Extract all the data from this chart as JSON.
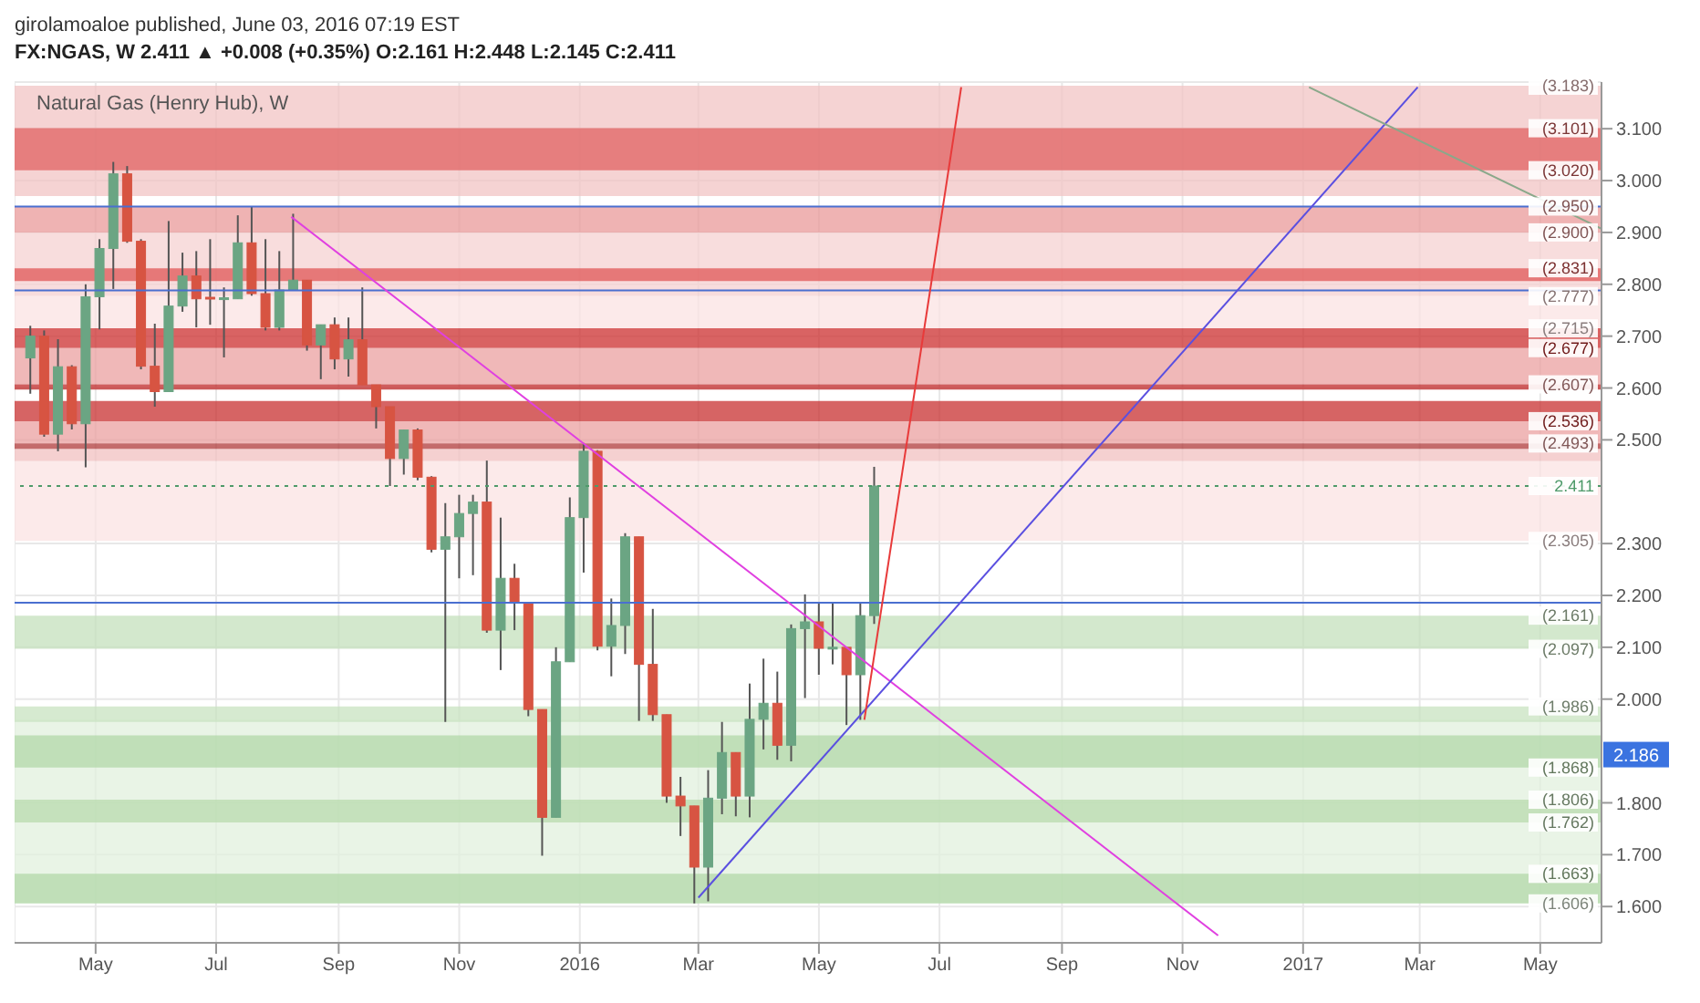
{
  "chart_data": {
    "type": "candlestick",
    "title": "girolamoaloe published, June 03, 2016 07:19 EST",
    "subtitle": "FX:NGAS, W 2.411 ▲ +0.008 (+0.35%) O:2.161 H:2.448 L:2.145 C:2.411",
    "annotations": [
      "Natural Gas (Henry Hub), W",
      {
        "text": "2.186",
        "y": 1.893
      },
      {
        "text": "(3.183)",
        "x": "2017-06-01",
        "y": 3.183
      },
      {
        "text": "(3.101)",
        "x": "2017-06-01",
        "y": 3.101
      },
      {
        "text": "(3.020)",
        "x": "2017-06-01",
        "y": 3.02
      },
      {
        "text": "(2.950)",
        "x": "2017-06-01",
        "y": 2.95
      },
      {
        "text": "(2.900)",
        "x": "2017-06-01",
        "y": 2.9
      },
      {
        "text": "(2.831)",
        "x": "2017-06-01",
        "y": 2.831
      },
      {
        "text": "(2.777)",
        "x": "2017-06-01",
        "y": 2.777
      },
      {
        "text": "(2.715)",
        "x": "2017-06-01",
        "y": 2.715
      },
      {
        "text": "(2.677)",
        "x": "2017-06-01",
        "y": 2.677
      },
      {
        "text": "(2.607)",
        "x": "2017-06-01",
        "y": 2.607
      },
      {
        "text": "(2.536)",
        "x": "2017-06-01",
        "y": 2.536
      },
      {
        "text": "(2.493)",
        "x": "2017-06-01",
        "y": 2.493
      },
      {
        "text": "(2.305)",
        "x": "2017-06-01",
        "y": 2.305
      },
      {
        "text": "(2.161)",
        "x": "2017-06-01",
        "y": 2.161
      },
      {
        "text": "(2.097)",
        "x": "2017-06-01",
        "y": 2.097
      },
      {
        "text": "(1.986)",
        "x": "2017-06-01",
        "y": 1.986
      },
      {
        "text": "(1.868)",
        "x": "2017-06-01",
        "y": 1.868
      },
      {
        "text": "(1.806)",
        "x": "2017-06-01",
        "y": 1.806
      },
      {
        "text": "(1.762)",
        "x": "2017-06-01",
        "y": 1.762
      },
      {
        "text": "(1.663)",
        "x": "2017-06-01",
        "y": 1.663
      },
      {
        "text": "(1.606)",
        "x": "2017-06-01",
        "y": 1.606
      }
    ],
    "x": [
      "2015-03-29",
      "2015-04-05",
      "2015-04-12",
      "2015-04-19",
      "2015-04-26",
      "2015-05-03",
      "2015-05-10",
      "2015-05-17",
      "2015-05-24",
      "2015-05-31",
      "2015-06-07",
      "2015-06-14",
      "2015-06-21",
      "2015-06-28",
      "2015-07-05",
      "2015-07-12",
      "2015-07-19",
      "2015-07-26",
      "2015-08-02",
      "2015-08-09",
      "2015-08-16",
      "2015-08-23",
      "2015-08-30",
      "2015-09-06",
      "2015-09-13",
      "2015-09-20",
      "2015-09-27",
      "2015-10-04",
      "2015-10-11",
      "2015-10-18",
      "2015-10-25",
      "2015-11-01",
      "2015-11-08",
      "2015-11-15",
      "2015-11-22",
      "2015-11-29",
      "2015-12-06",
      "2015-12-13",
      "2015-12-20",
      "2015-12-27",
      "2016-01-03",
      "2016-01-10",
      "2016-01-17",
      "2016-01-24",
      "2016-01-31",
      "2016-02-07",
      "2016-02-14",
      "2016-02-21",
      "2016-02-28",
      "2016-03-06",
      "2016-03-13",
      "2016-03-20",
      "2016-03-27",
      "2016-04-03",
      "2016-04-10",
      "2016-04-17",
      "2016-04-24",
      "2016-05-01",
      "2016-05-08",
      "2016-05-15",
      "2016-05-22",
      "2016-05-29"
    ],
    "ohlc": [
      [
        2.658,
        2.72,
        2.589,
        2.7
      ],
      [
        2.7,
        2.711,
        2.506,
        2.511
      ],
      [
        2.511,
        2.694,
        2.478,
        2.641
      ],
      [
        2.641,
        2.644,
        2.52,
        2.531
      ],
      [
        2.531,
        2.8,
        2.447,
        2.776
      ],
      [
        2.776,
        2.887,
        2.713,
        2.869
      ],
      [
        2.869,
        3.036,
        2.791,
        3.013
      ],
      [
        3.013,
        3.028,
        2.88,
        2.883
      ],
      [
        2.883,
        2.887,
        2.636,
        2.642
      ],
      [
        2.642,
        2.724,
        2.564,
        2.593
      ],
      [
        2.593,
        2.922,
        2.593,
        2.758
      ],
      [
        2.758,
        2.861,
        2.747,
        2.816
      ],
      [
        2.816,
        2.864,
        2.717,
        2.772
      ],
      [
        2.775,
        2.887,
        2.722,
        2.772
      ],
      [
        2.772,
        2.794,
        2.659,
        2.774
      ],
      [
        2.772,
        2.933,
        2.772,
        2.88
      ],
      [
        2.88,
        2.95,
        2.778,
        2.782
      ],
      [
        2.782,
        2.887,
        2.711,
        2.717
      ],
      [
        2.717,
        2.864,
        2.711,
        2.789
      ],
      [
        2.789,
        2.936,
        2.789,
        2.808
      ],
      [
        2.808,
        2.808,
        2.672,
        2.683
      ],
      [
        2.683,
        2.722,
        2.617,
        2.722
      ],
      [
        2.722,
        2.736,
        2.636,
        2.656
      ],
      [
        2.656,
        2.736,
        2.622,
        2.693
      ],
      [
        2.693,
        2.794,
        2.606,
        2.606
      ],
      [
        2.606,
        2.606,
        2.522,
        2.564
      ],
      [
        2.564,
        2.564,
        2.411,
        2.464
      ],
      [
        2.464,
        2.519,
        2.433,
        2.519
      ],
      [
        2.519,
        2.522,
        2.422,
        2.428
      ],
      [
        2.428,
        2.43,
        2.283,
        2.289
      ],
      [
        2.289,
        2.378,
        1.956,
        2.313
      ],
      [
        2.313,
        2.394,
        2.233,
        2.358
      ],
      [
        2.358,
        2.394,
        2.239,
        2.38
      ],
      [
        2.38,
        2.46,
        2.128,
        2.133
      ],
      [
        2.133,
        2.35,
        2.056,
        2.233
      ],
      [
        2.233,
        2.261,
        2.133,
        2.186
      ],
      [
        2.186,
        2.186,
        1.967,
        1.98
      ],
      [
        1.98,
        1.98,
        1.698,
        1.772
      ],
      [
        1.772,
        2.1,
        1.772,
        2.072
      ],
      [
        2.072,
        2.389,
        2.072,
        2.35
      ],
      [
        2.35,
        2.494,
        2.244,
        2.478
      ],
      [
        2.478,
        2.48,
        2.094,
        2.102
      ],
      [
        2.102,
        2.194,
        2.044,
        2.142
      ],
      [
        2.142,
        2.32,
        2.087,
        2.313
      ],
      [
        2.313,
        2.313,
        1.958,
        2.067
      ],
      [
        2.067,
        2.174,
        1.958,
        1.97
      ],
      [
        1.97,
        1.97,
        1.8,
        1.813
      ],
      [
        1.813,
        1.85,
        1.736,
        1.794
      ],
      [
        1.794,
        1.794,
        1.606,
        1.676
      ],
      [
        1.676,
        1.863,
        1.61,
        1.809
      ],
      [
        1.809,
        1.956,
        1.778,
        1.897
      ],
      [
        1.897,
        1.897,
        1.774,
        1.813
      ],
      [
        1.813,
        2.03,
        1.772,
        1.961
      ],
      [
        1.961,
        2.078,
        1.903,
        1.992
      ],
      [
        1.992,
        2.053,
        1.883,
        1.911
      ],
      [
        1.911,
        2.144,
        1.88,
        2.136
      ],
      [
        2.136,
        2.202,
        2.002,
        2.149
      ],
      [
        2.149,
        2.187,
        2.047,
        2.098
      ],
      [
        2.098,
        2.187,
        2.067,
        2.1
      ],
      [
        2.1,
        2.1,
        1.95,
        2.047
      ],
      [
        2.047,
        2.186,
        1.96,
        2.161
      ],
      [
        2.161,
        2.448,
        2.145,
        2.411
      ]
    ],
    "colors": [
      "#6ba583",
      "#d75442",
      "#6ba583",
      "#d75442",
      "#6ba583",
      "#6ba583",
      "#6ba583",
      "#d75442",
      "#d75442",
      "#d75442",
      "#6ba583",
      "#6ba583",
      "#d75442",
      "#d75442",
      "#6ba583",
      "#6ba583",
      "#d75442",
      "#d75442",
      "#6ba583",
      "#6ba583",
      "#d75442",
      "#6ba583",
      "#d75442",
      "#6ba583",
      "#d75442",
      "#d75442",
      "#d75442",
      "#6ba583",
      "#d75442",
      "#d75442",
      "#6ba583",
      "#6ba583",
      "#6ba583",
      "#d75442",
      "#6ba583",
      "#d75442",
      "#d75442",
      "#d75442",
      "#6ba583",
      "#6ba583",
      "#6ba583",
      "#d75442",
      "#6ba583",
      "#6ba583",
      "#d75442",
      "#d75442",
      "#d75442",
      "#d75442",
      "#d75442",
      "#6ba583",
      "#6ba583",
      "#d75442",
      "#6ba583",
      "#6ba583",
      "#d75442",
      "#6ba583",
      "#6ba583",
      "#d75442",
      "#6ba583",
      "#d75442",
      "#6ba583",
      "#6ba583"
    ],
    "series": [
      {
        "type": "line",
        "color": "#e040e0",
        "x": [
          "2015-08-08",
          "2016-11-19"
        ],
        "values": [
          2.93,
          1.544
        ]
      },
      {
        "type": "line",
        "color": "#5a4fe0",
        "x": [
          "2016-03-01",
          "2017-02-28"
        ],
        "values": [
          1.617,
          3.18
        ]
      },
      {
        "type": "line",
        "color": "#e83a3a",
        "x": [
          "2016-05-24",
          "2016-07-12"
        ],
        "values": [
          1.96,
          3.18
        ]
      },
      {
        "type": "line",
        "color": "#8aa88a",
        "x": [
          "2017-01-04",
          "2017-06-01"
        ],
        "values": [
          3.18,
          2.907
        ]
      }
    ],
    "xlim": [
      "2015-03-21",
      "2017-06-01"
    ],
    "xticks": [
      {
        "value": "2015-05-01",
        "label": "May"
      },
      {
        "value": "2015-07-01",
        "label": "Jul"
      },
      {
        "value": "2015-09-01",
        "label": "Sep"
      },
      {
        "value": "2015-11-01",
        "label": "Nov"
      },
      {
        "value": "2016-01-01",
        "label": "2016"
      },
      {
        "value": "2016-03-01",
        "label": "Mar"
      },
      {
        "value": "2016-05-01",
        "label": "May"
      },
      {
        "value": "2016-07-01",
        "label": "Jul"
      },
      {
        "value": "2016-09-01",
        "label": "Sep"
      },
      {
        "value": "2016-11-01",
        "label": "Nov"
      },
      {
        "value": "2017-01-01",
        "label": "2017"
      },
      {
        "value": "2017-03-01",
        "label": "Mar"
      },
      {
        "value": "2017-05-01",
        "label": "May"
      }
    ],
    "ylim": [
      1.53,
      3.19
    ],
    "yticks": [
      {
        "value": 1.6,
        "label": "1.600"
      },
      {
        "value": 1.7,
        "label": "1.700"
      },
      {
        "value": 1.8,
        "label": "1.800"
      },
      {
        "value": 2.0,
        "label": "2.000"
      },
      {
        "value": 2.1,
        "label": "2.100"
      },
      {
        "value": 2.2,
        "label": "2.200"
      },
      {
        "value": 2.3,
        "label": "2.300"
      },
      {
        "value": 2.5,
        "label": "2.500"
      },
      {
        "value": 2.6,
        "label": "2.600"
      },
      {
        "value": 2.7,
        "label": "2.700"
      },
      {
        "value": 2.8,
        "label": "2.800"
      },
      {
        "value": 2.9,
        "label": "2.900"
      },
      {
        "value": 3.0,
        "label": "3.000"
      },
      {
        "value": 3.1,
        "label": "3.100"
      }
    ],
    "grid": true,
    "bands": [
      {
        "axis": "y",
        "from": 2.97,
        "to": 3.183,
        "color": "#f2c4c4"
      },
      {
        "axis": "y",
        "from": 3.02,
        "to": 3.101,
        "color": "#e06262"
      },
      {
        "axis": "y",
        "from": 2.9,
        "to": 2.95,
        "color": "#e99999"
      },
      {
        "axis": "y",
        "from": 2.777,
        "to": 2.9,
        "color": "#f6d2d2"
      },
      {
        "axis": "y",
        "from": 2.806,
        "to": 2.831,
        "color": "#e05555"
      },
      {
        "axis": "y",
        "from": 2.715,
        "to": 2.777,
        "color": "#fbe3e3"
      },
      {
        "axis": "y",
        "from": 2.677,
        "to": 2.715,
        "color": "#cc2f2f"
      },
      {
        "axis": "y",
        "from": 2.607,
        "to": 2.677,
        "color": "#eba0a0"
      },
      {
        "axis": "y",
        "from": 2.597,
        "to": 2.607,
        "color": "#c02828"
      },
      {
        "axis": "y",
        "from": 2.536,
        "to": 2.575,
        "color": "#c83030"
      },
      {
        "axis": "y",
        "from": 2.493,
        "to": 2.536,
        "color": "#eba0a0"
      },
      {
        "axis": "y",
        "from": 2.482,
        "to": 2.493,
        "color": "#b03a3a"
      },
      {
        "axis": "y",
        "from": 2.459,
        "to": 2.482,
        "color": "#f2c0c0"
      },
      {
        "axis": "y",
        "from": 2.305,
        "to": 2.459,
        "color": "#fbe3e3"
      },
      {
        "axis": "y",
        "from": 2.097,
        "to": 2.161,
        "color": "#c4e0bc"
      },
      {
        "axis": "y",
        "from": 1.606,
        "to": 1.96,
        "color": "#e2f0dd"
      },
      {
        "axis": "y",
        "from": 1.956,
        "to": 1.986,
        "color": "#c8e3c0"
      },
      {
        "axis": "y",
        "from": 1.868,
        "to": 1.93,
        "color": "#b2d8a8"
      },
      {
        "axis": "y",
        "from": 1.762,
        "to": 1.806,
        "color": "#b8dbae"
      },
      {
        "axis": "y",
        "from": 1.606,
        "to": 1.663,
        "color": "#b2d8a8"
      }
    ],
    "ref_lines": [
      {
        "axis": "y",
        "value": 2.95,
        "color": "#4a6fd0"
      },
      {
        "axis": "y",
        "value": 2.788,
        "color": "#4a6fd0"
      },
      {
        "axis": "y",
        "value": 2.411,
        "label": "2.411",
        "color": "#4f9a6a",
        "line_style": "dotted"
      },
      {
        "axis": "y",
        "value": 2.186,
        "color": "#4a6fd0"
      }
    ]
  }
}
